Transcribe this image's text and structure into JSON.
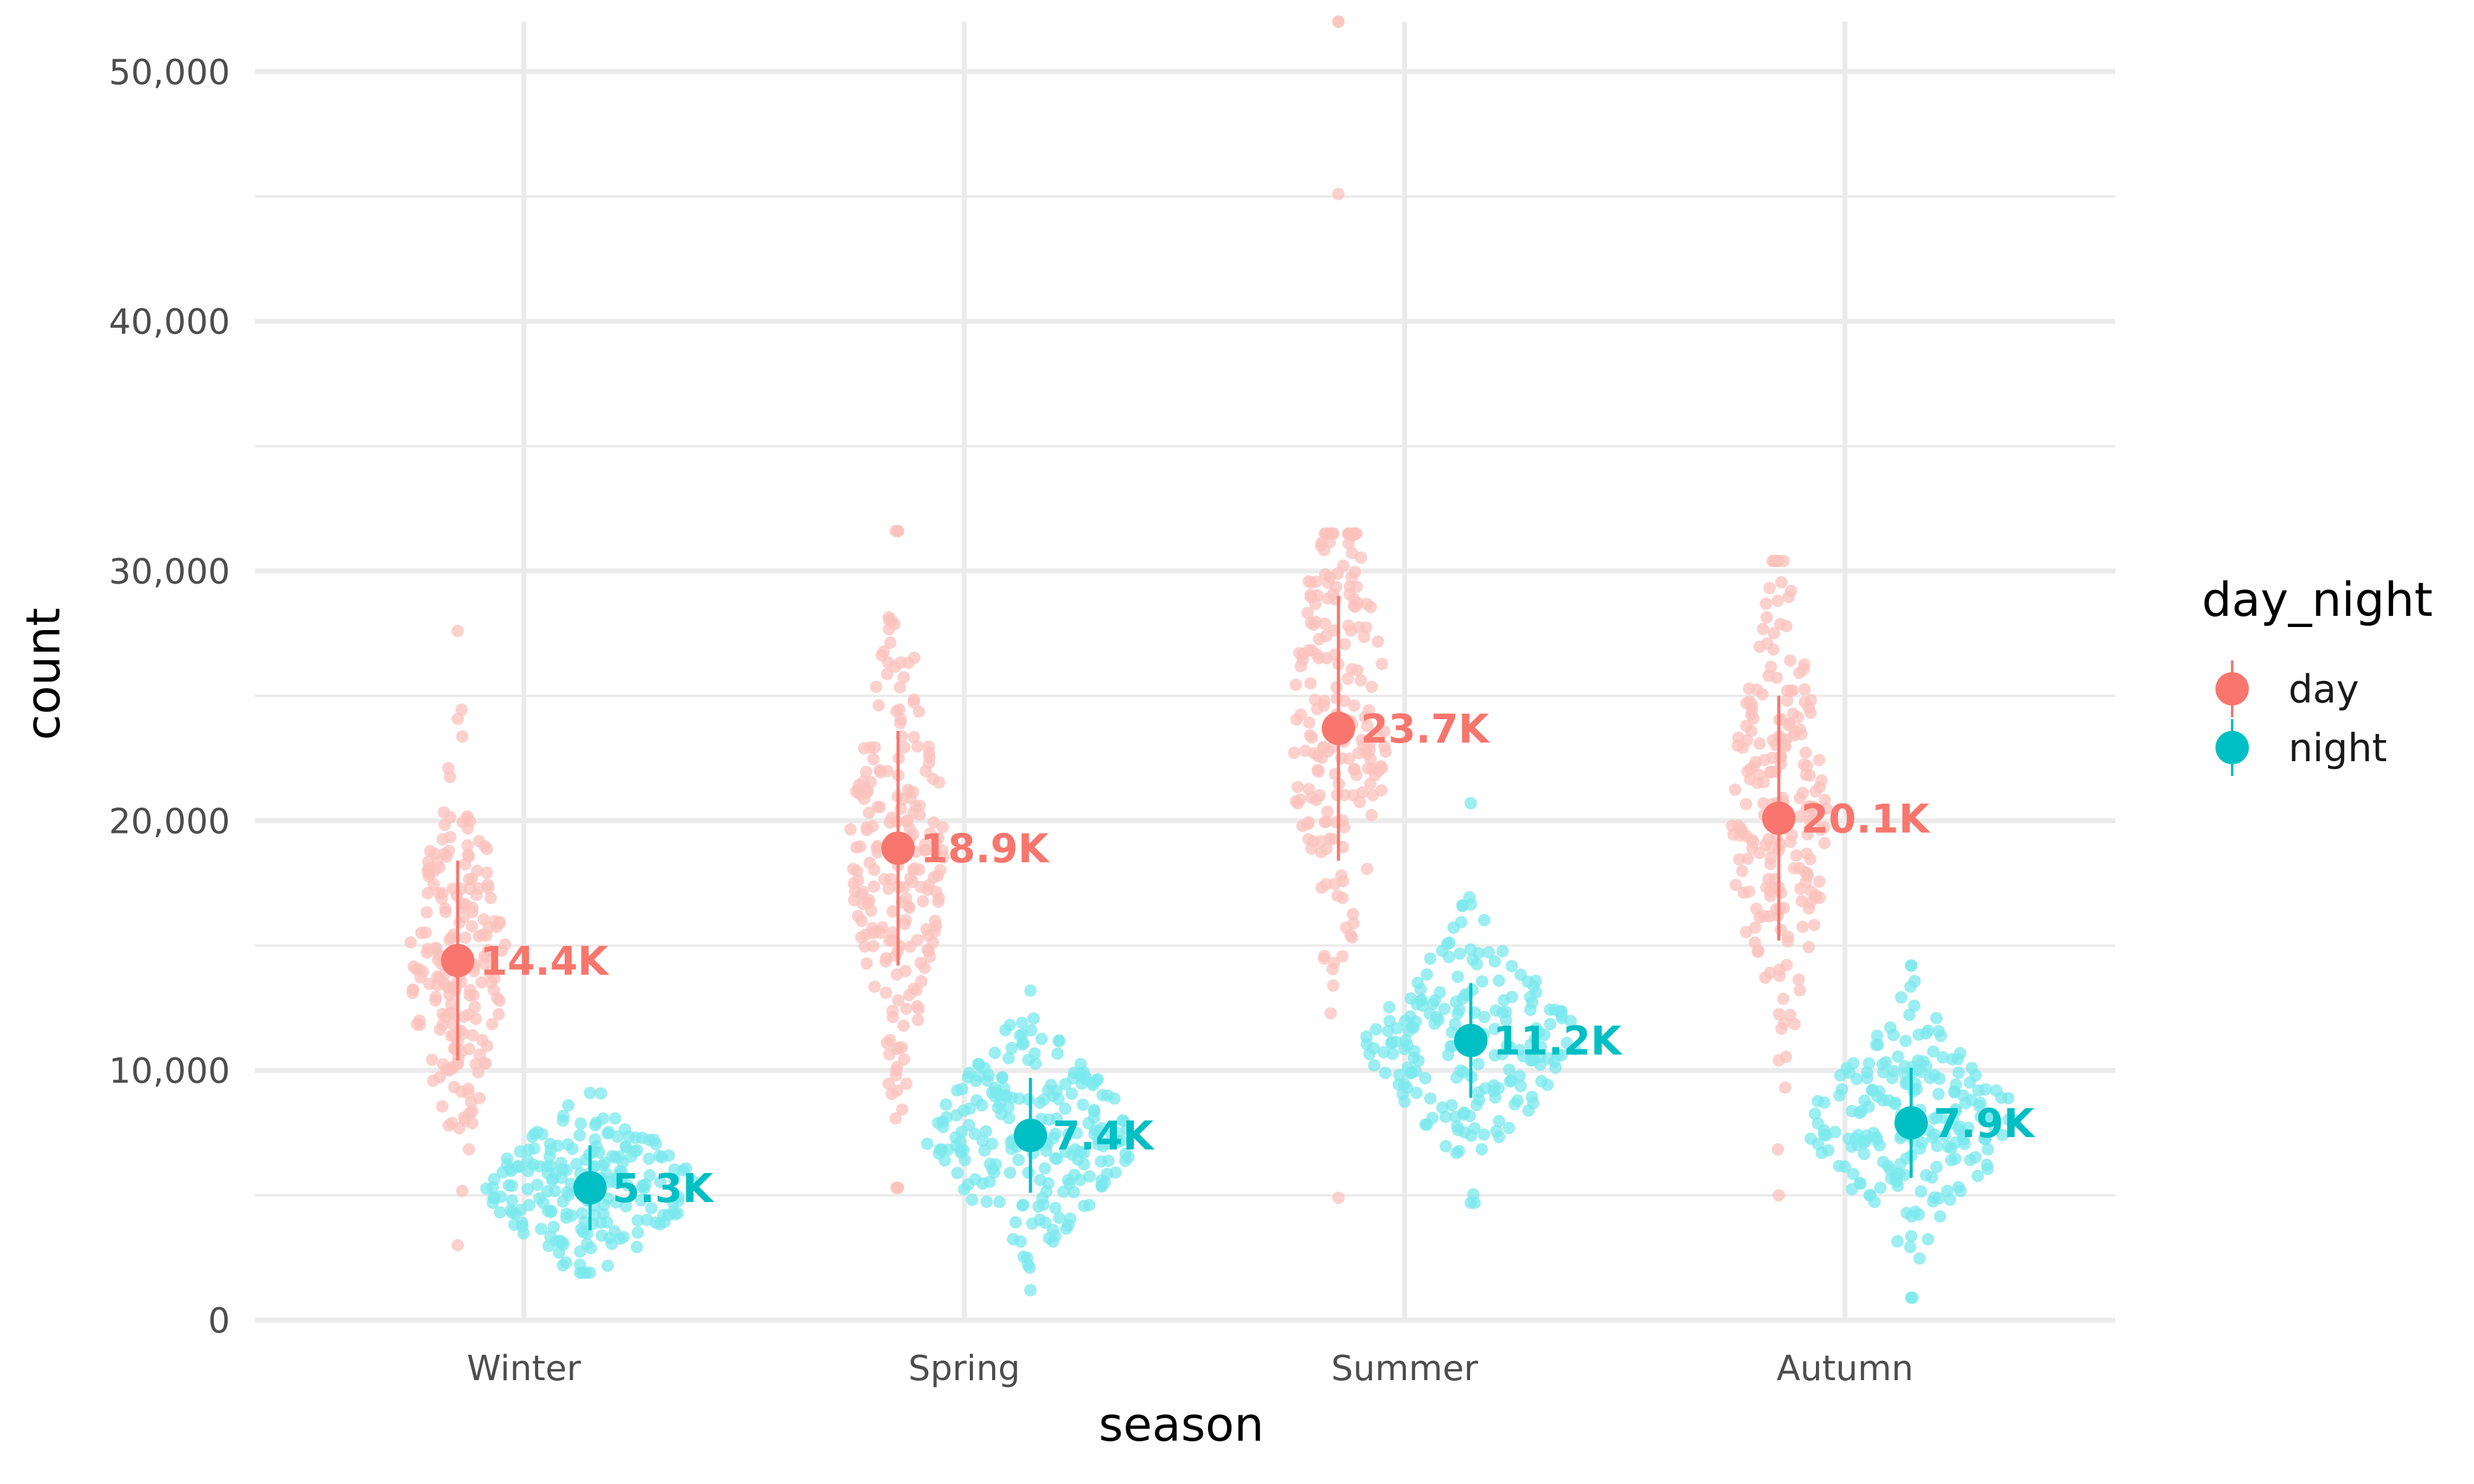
{
  "chart_data": {
    "type": "scatter",
    "subtype": "beeswarm with mean ± sd pointrange",
    "xlabel": "season",
    "ylabel": "count",
    "categories": [
      "Winter",
      "Spring",
      "Summer",
      "Autumn"
    ],
    "ylim": [
      0,
      52000
    ],
    "yticks": [
      0,
      10000,
      20000,
      30000,
      40000,
      50000
    ],
    "ytick_labels": [
      "0",
      "10,000",
      "20,000",
      "30,000",
      "40,000",
      "50,000"
    ],
    "grid": true,
    "legend": {
      "title": "day_night",
      "position": "right",
      "entries": [
        "day",
        "night"
      ]
    },
    "series": [
      {
        "name": "day",
        "color": "#F8766D",
        "point_color": "#FBC2BC",
        "means": [
          14400,
          18900,
          23700,
          20100
        ],
        "ranges": [
          [
            10400,
            18400
          ],
          [
            14200,
            23600
          ],
          [
            18400,
            29000
          ],
          [
            15200,
            25000
          ]
        ],
        "labels": [
          "14.4K",
          "18.9K",
          "23.7K",
          "20.1K"
        ],
        "spreads": [
          [
            3000,
            27600
          ],
          [
            5300,
            31600
          ],
          [
            4900,
            52000
          ],
          [
            5000,
            30400
          ]
        ],
        "outliers": [
          [],
          [],
          [
            45100,
            52000
          ],
          []
        ]
      },
      {
        "name": "night",
        "color": "#00BFC4",
        "point_color": "#7AE8EC",
        "means": [
          5300,
          7400,
          11200,
          7900
        ],
        "ranges": [
          [
            3600,
            7000
          ],
          [
            5100,
            9700
          ],
          [
            8900,
            13500
          ],
          [
            5700,
            10100
          ]
        ],
        "labels": [
          "5.3K",
          "7.4K",
          "11.2K",
          "7.9K"
        ],
        "spreads": [
          [
            1900,
            9100
          ],
          [
            1200,
            13200
          ],
          [
            4700,
            20700
          ],
          [
            900,
            14200
          ]
        ],
        "outliers": [
          [],
          [],
          [],
          []
        ]
      }
    ]
  }
}
